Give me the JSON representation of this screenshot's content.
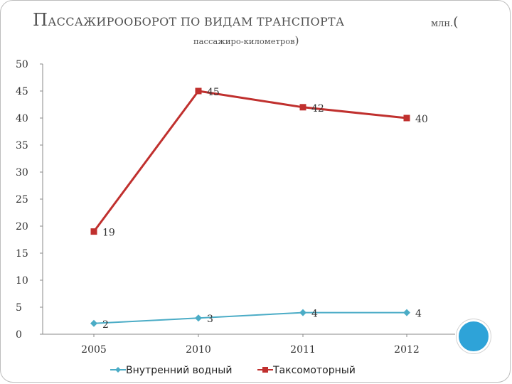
{
  "title": {
    "main": "Пассажирооборот по видам транспорта",
    "unit": "млн.",
    "unit_paren": "(",
    "sub": "пассажиро-километров",
    "sub_paren": ")"
  },
  "colors": {
    "series_0": "#4bacc6",
    "series_1": "#c0302e",
    "accent_circle": "#2ea3d8"
  },
  "chart_data": {
    "type": "line",
    "categories": [
      "2005",
      "2010",
      "2011",
      "2012"
    ],
    "series": [
      {
        "name": "Внутренний водный",
        "values": [
          2,
          3,
          4,
          4
        ],
        "marker": "diamond"
      },
      {
        "name": "Таксомоторный",
        "values": [
          19,
          45,
          42,
          40
        ],
        "marker": "square"
      }
    ],
    "ylim": [
      0,
      50
    ],
    "yticks": [
      0,
      5,
      10,
      15,
      20,
      25,
      30,
      35,
      40,
      45,
      50
    ],
    "grid": false,
    "legend": "bottom",
    "data_labels": true
  }
}
